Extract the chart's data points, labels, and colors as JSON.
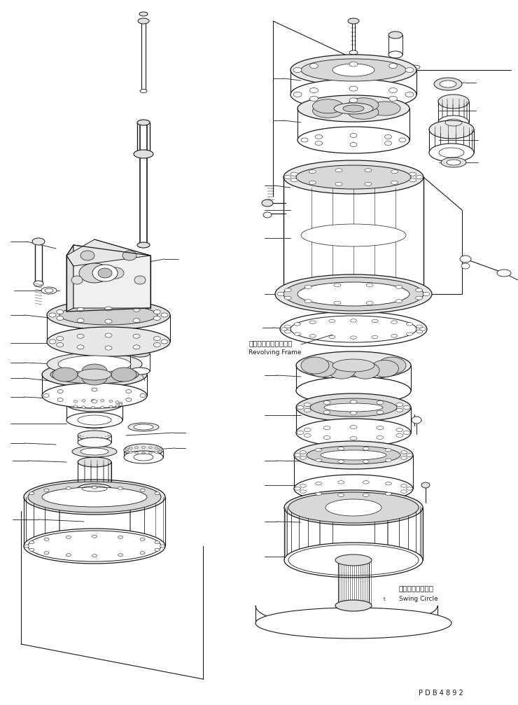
{
  "background_color": "#ffffff",
  "line_color": "#1a1a1a",
  "text_color": "#1a1a1a",
  "label_revolving_jp": "レボルビングフレーム",
  "label_revolving_en": "Revolving Frame",
  "label_swing_jp": "スイングサークル",
  "label_swing_en": "Swing Circle",
  "label_pdb": "P D B 4 8 9 2",
  "figsize": [
    7.4,
    10.07
  ],
  "dpi": 100,
  "font_size_jp": 7.5,
  "font_size_en": 6.5,
  "font_size_pdb": 7
}
